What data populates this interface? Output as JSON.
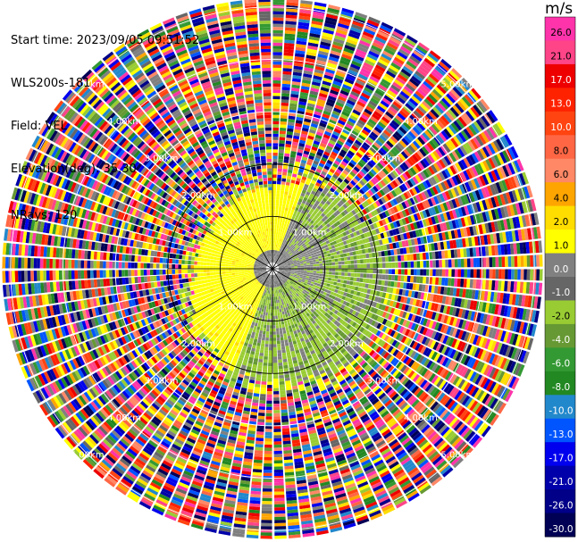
{
  "header": {
    "start_time": "Start time: 2023/09/05 09:51:52",
    "instrument": "WLS200s-181",
    "field": "Field: VEL",
    "elevation": "Elevation(deg): 35.30",
    "nrays": "NRays: 120"
  },
  "chart_data": {
    "type": "heatmap",
    "subtype": "polar-ppi",
    "title": "",
    "field": "VEL",
    "unit": "m/s",
    "nrays": 120,
    "elevation_deg": 35.3,
    "range_rings_km": [
      1.0,
      2.0,
      3.0,
      4.0,
      5.0
    ],
    "ring_label": "km",
    "radial_spokes_deg": [
      0,
      30,
      60,
      90,
      120,
      150,
      180,
      210,
      240,
      270,
      300,
      330
    ],
    "colorbar": {
      "label": "m/s",
      "ticks": [
        "26.0",
        "21.0",
        "17.0",
        "13.0",
        "10.0",
        "8.0",
        "6.0",
        "4.0",
        "2.0",
        "1.0",
        "0.0",
        "-1.0",
        "-2.0",
        "-4.0",
        "-6.0",
        "-8.0",
        "-10.0",
        "-13.0",
        "-17.0",
        "-21.0",
        "-26.0",
        "-30.0"
      ],
      "colors": [
        "#ff33aa",
        "#ff4488",
        "#ee0000",
        "#ff2200",
        "#ff4411",
        "#ff6644",
        "#ff8866",
        "#ffa500",
        "#ffdd00",
        "#ffff00",
        "#808080",
        "#666666",
        "#99cc33",
        "#669933",
        "#339933",
        "#228822",
        "#2288cc",
        "#0055ff",
        "#0000ee",
        "#0000aa",
        "#000088",
        "#000055"
      ]
    },
    "pattern": {
      "inner_positive": "yellow (~1-2 m/s) north-west half",
      "inner_negative": "gray/olive (~0 to -2 m/s) south-east half",
      "outer_noise": "random multicolor beyond ~1.8-2.4 km"
    }
  }
}
